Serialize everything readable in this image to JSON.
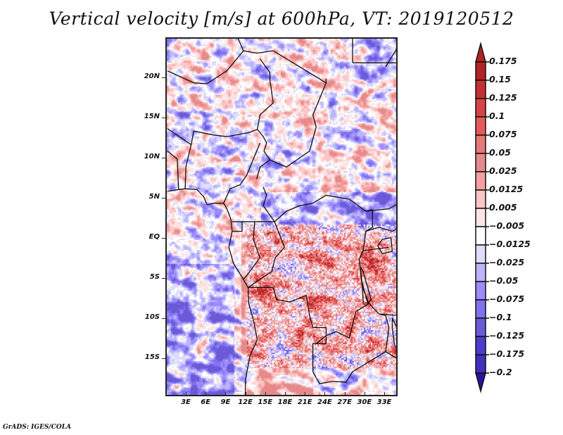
{
  "title": "Vertical velocity [m/s] at 600hPa, VT: 2019120512",
  "credit": "GrADS: IGES/COLA",
  "map": {
    "variable": "Vertical velocity",
    "units": "m/s",
    "level": "600hPa",
    "valid_time": "2019120512",
    "lon_range": [
      0,
      35
    ],
    "lat_range": [
      -20,
      25
    ],
    "lat_ticks": [
      {
        "value": 20,
        "label": "20N"
      },
      {
        "value": 15,
        "label": "15N"
      },
      {
        "value": 10,
        "label": "10N"
      },
      {
        "value": 5,
        "label": "5N"
      },
      {
        "value": 0,
        "label": "EQ"
      },
      {
        "value": -5,
        "label": "5S"
      },
      {
        "value": -10,
        "label": "10S"
      },
      {
        "value": -15,
        "label": "15S"
      }
    ],
    "lon_ticks": [
      {
        "value": 3,
        "label": "3E"
      },
      {
        "value": 6,
        "label": "6E"
      },
      {
        "value": 9,
        "label": "9E"
      },
      {
        "value": 12,
        "label": "12E"
      },
      {
        "value": 15,
        "label": "15E"
      },
      {
        "value": 18,
        "label": "18E"
      },
      {
        "value": 21,
        "label": "21E"
      },
      {
        "value": 24,
        "label": "24E"
      },
      {
        "value": 27,
        "label": "27E"
      },
      {
        "value": 30,
        "label": "30E"
      },
      {
        "value": 33,
        "label": "33E"
      }
    ]
  },
  "colorbar": {
    "extend": "both",
    "levels": [
      {
        "label": "0.175",
        "color": "#b22222"
      },
      {
        "label": "0.15",
        "color": "#c53030"
      },
      {
        "label": "0.125",
        "color": "#d94343"
      },
      {
        "label": "0.1",
        "color": "#e85858"
      },
      {
        "label": "0.075",
        "color": "#e87878"
      },
      {
        "label": "0.05",
        "color": "#e48a8a"
      },
      {
        "label": "0.025",
        "color": "#f4a0a0"
      },
      {
        "label": "0.0125",
        "color": "#fbc6c6"
      },
      {
        "label": "0.005",
        "color": "#fde4e4"
      },
      {
        "label": "-0.005",
        "color": "#ffffff"
      },
      {
        "label": "-0.0125",
        "color": "#dcdcfc"
      },
      {
        "label": "-0.025",
        "color": "#bcb4fc"
      },
      {
        "label": "-0.05",
        "color": "#9c8cfc"
      },
      {
        "label": "-0.075",
        "color": "#7f72ec"
      },
      {
        "label": "-0.1",
        "color": "#6a5ad8"
      },
      {
        "label": "-0.125",
        "color": "#4e3ccc"
      },
      {
        "label": "-0.175",
        "color": "#4030bc"
      },
      {
        "label": "-0.2",
        "color": "#3222a8"
      }
    ],
    "top_extend_color": "#b22222",
    "bottom_extend_color": "#3010a0"
  }
}
